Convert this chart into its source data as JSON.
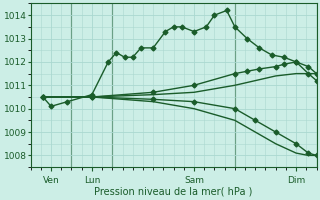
{
  "xlabel": "Pression niveau de la mer( hPa )",
  "bg_color": "#cceee6",
  "grid_color": "#aad8d0",
  "line_color": "#1a5c2a",
  "ylim": [
    1007.5,
    1014.5
  ],
  "yticks": [
    1008,
    1009,
    1010,
    1011,
    1012,
    1013,
    1014
  ],
  "xlim_days": [
    0,
    7.0
  ],
  "day_positions": [
    0.5,
    1.5,
    4.0,
    6.5
  ],
  "day_labels": [
    "Ven",
    "Lun",
    "Sam",
    "Dim"
  ],
  "vlines": [
    1.0,
    2.0,
    5.0,
    7.0
  ],
  "series": [
    {
      "x": [
        0.3,
        0.5,
        0.9,
        1.5,
        1.9,
        2.1,
        2.3,
        2.5,
        2.7,
        3.0,
        3.3,
        3.5,
        3.7,
        4.0,
        4.3,
        4.5,
        4.8,
        5.0,
        5.3,
        5.6,
        5.9,
        6.2,
        6.5,
        6.8,
        7.0
      ],
      "y": [
        1010.5,
        1010.1,
        1010.3,
        1010.6,
        1012.0,
        1012.4,
        1012.2,
        1012.2,
        1012.6,
        1012.6,
        1013.3,
        1013.5,
        1013.5,
        1013.3,
        1013.5,
        1014.0,
        1014.2,
        1013.5,
        1013.0,
        1012.6,
        1012.3,
        1012.2,
        1012.0,
        1011.8,
        1011.5
      ],
      "marker": "D",
      "ms": 2.5,
      "lw": 1.0
    },
    {
      "x": [
        0.3,
        1.5,
        3.0,
        4.0,
        5.0,
        5.5,
        6.0,
        6.5,
        6.8,
        7.0
      ],
      "y": [
        1010.5,
        1010.5,
        1010.3,
        1010.0,
        1009.5,
        1009.0,
        1008.5,
        1008.1,
        1008.0,
        1008.0
      ],
      "marker": null,
      "ms": 0,
      "lw": 1.0
    },
    {
      "x": [
        0.3,
        1.5,
        3.0,
        4.0,
        5.0,
        5.5,
        6.0,
        6.5,
        6.8,
        7.0
      ],
      "y": [
        1010.5,
        1010.5,
        1010.6,
        1010.7,
        1011.0,
        1011.2,
        1011.4,
        1011.5,
        1011.5,
        1011.5
      ],
      "marker": null,
      "ms": 0,
      "lw": 1.0
    },
    {
      "x": [
        0.3,
        1.5,
        3.0,
        4.0,
        5.0,
        5.3,
        5.6,
        6.0,
        6.2,
        6.5,
        6.8,
        7.0
      ],
      "y": [
        1010.5,
        1010.5,
        1010.7,
        1011.0,
        1011.5,
        1011.6,
        1011.7,
        1011.8,
        1011.9,
        1012.0,
        1011.5,
        1011.2
      ],
      "marker": "D",
      "ms": 2.5,
      "lw": 1.0
    },
    {
      "x": [
        0.3,
        1.5,
        3.0,
        4.0,
        5.0,
        5.5,
        6.0,
        6.5,
        6.8,
        7.0
      ],
      "y": [
        1010.5,
        1010.5,
        1010.4,
        1010.3,
        1010.0,
        1009.5,
        1009.0,
        1008.5,
        1008.1,
        1008.0
      ],
      "marker": "D",
      "ms": 2.5,
      "lw": 1.0
    }
  ]
}
